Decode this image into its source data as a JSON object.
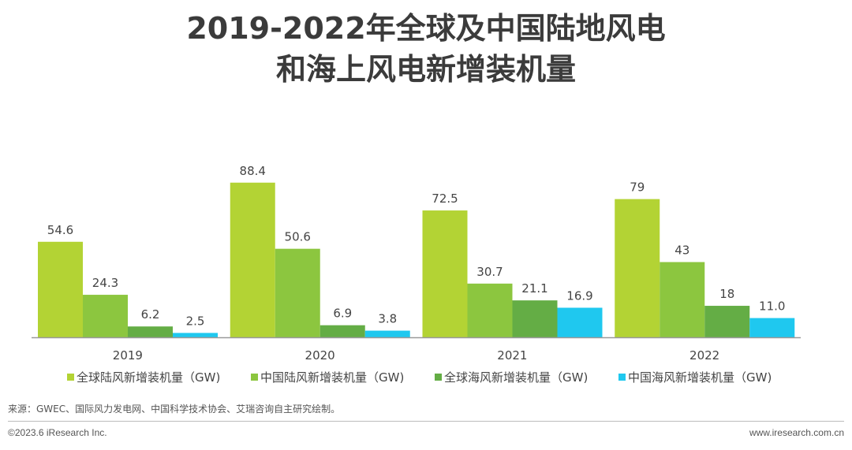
{
  "title_line1": "2019-2022年全球及中国陆地风电",
  "title_line2": "和海上风电新增装机量",
  "chart_data": {
    "type": "bar",
    "categories": [
      "2019",
      "2020",
      "2021",
      "2022"
    ],
    "series": [
      {
        "name": "全球陆风新增装机量（GW)",
        "color": "#b3d334",
        "values": [
          54.6,
          88.4,
          72.5,
          79
        ],
        "labels": [
          "54.6",
          "88.4",
          "72.5",
          "79"
        ]
      },
      {
        "name": "中国陆风新增装机量（GW)",
        "color": "#8cc63f",
        "values": [
          24.3,
          50.6,
          30.7,
          43
        ],
        "labels": [
          "24.3",
          "50.6",
          "30.7",
          "43"
        ]
      },
      {
        "name": "全球海风新增装机量（GW)",
        "color": "#64ad45",
        "values": [
          6.2,
          6.9,
          21.1,
          18
        ],
        "labels": [
          "6.2",
          "6.9",
          "21.1",
          "18"
        ]
      },
      {
        "name": "中国海风新增装机量（GW)",
        "color": "#1fc8ef",
        "values": [
          2.5,
          3.8,
          16.9,
          11.0
        ],
        "labels": [
          "2.5",
          "3.8",
          "16.9",
          "11.0"
        ]
      }
    ],
    "ylim": [
      0,
      100
    ],
    "grid": false,
    "legend_position": "bottom"
  },
  "source": "来源：GWEC、国际风力发电网、中国科学技术协会、艾瑞咨询自主研究绘制。",
  "copyright": "©2023.6 iResearch Inc.",
  "website": "www.iresearch.com.cn"
}
